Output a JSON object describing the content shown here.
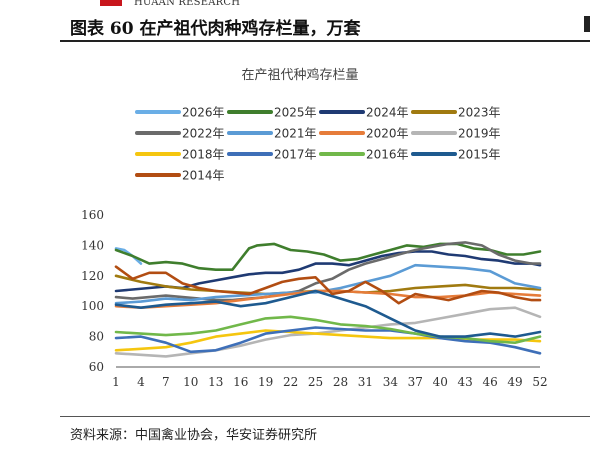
{
  "header": {
    "brand": "HUAAN RESEARCH",
    "figure_title": "图表 60 在产祖代肉种鸡存栏量，万套"
  },
  "footer": {
    "source": "资料来源：中国禽业协会，华安证券研究所"
  },
  "colors": {
    "brand_red": "#c8161d"
  },
  "chart_data": {
    "type": "line",
    "title": "在产祖代种鸡存栏量",
    "xlabel": "",
    "ylabel": "",
    "ylim": [
      60,
      160
    ],
    "yticks": [
      60,
      80,
      100,
      120,
      140,
      160
    ],
    "xlim": [
      1,
      52
    ],
    "xticks": [
      1,
      4,
      7,
      10,
      13,
      16,
      19,
      22,
      25,
      28,
      31,
      34,
      37,
      40,
      43,
      46,
      49,
      52
    ],
    "grid": false,
    "legend_position": "top",
    "series": [
      {
        "name": "2026年",
        "color": "#6aaee6",
        "x": [
          1,
          2,
          3,
          4
        ],
        "y": [
          138,
          137,
          133,
          128
        ]
      },
      {
        "name": "2025年",
        "color": "#3f7e2d",
        "x": [
          1,
          3,
          5,
          7,
          9,
          11,
          13,
          15,
          17,
          18,
          20,
          22,
          24,
          26,
          28,
          30,
          32,
          34,
          36,
          38,
          40,
          42,
          44,
          46,
          48,
          50,
          52
        ],
        "y": [
          137,
          133,
          128,
          129,
          128,
          125,
          124,
          124,
          138,
          140,
          141,
          137,
          136,
          134,
          130,
          131,
          134,
          137,
          140,
          139,
          141,
          141,
          138,
          137,
          134,
          134,
          136
        ]
      },
      {
        "name": "2024年",
        "color": "#1f3a73",
        "x": [
          1,
          3,
          5,
          7,
          9,
          11,
          13,
          15,
          17,
          19,
          21,
          23,
          25,
          27,
          29,
          31,
          33,
          35,
          37,
          39,
          41,
          43,
          45,
          47,
          49,
          51,
          52
        ],
        "y": [
          110,
          111,
          112,
          113,
          112,
          115,
          117,
          119,
          121,
          122,
          122,
          124,
          128,
          128,
          127,
          130,
          133,
          135,
          136,
          136,
          134,
          133,
          131,
          130,
          128,
          128,
          127
        ]
      },
      {
        "name": "2023年",
        "color": "#a07a10",
        "x": [
          1,
          4,
          7,
          10,
          13,
          16,
          19,
          22,
          25,
          28,
          31,
          34,
          37,
          40,
          43,
          46,
          49,
          52
        ],
        "y": [
          120,
          116,
          113,
          111,
          110,
          109,
          108,
          109,
          110,
          110,
          109,
          110,
          112,
          113,
          114,
          112,
          112,
          111
        ]
      },
      {
        "name": "2022年",
        "color": "#6b6b6b",
        "x": [
          1,
          3,
          5,
          7,
          9,
          11,
          13,
          15,
          17,
          19,
          21,
          23,
          25,
          27,
          29,
          31,
          33,
          35,
          37,
          39,
          41,
          43,
          45,
          47,
          49,
          51,
          52
        ],
        "y": [
          106,
          105,
          106,
          107,
          106,
          105,
          104,
          104,
          105,
          106,
          108,
          110,
          115,
          118,
          124,
          128,
          131,
          134,
          137,
          139,
          141,
          142,
          140,
          134,
          130,
          128,
          128
        ]
      },
      {
        "name": "2021年",
        "color": "#5b9bd5",
        "x": [
          1,
          4,
          7,
          10,
          13,
          16,
          19,
          22,
          25,
          28,
          31,
          34,
          37,
          40,
          43,
          46,
          49,
          52
        ],
        "y": [
          102,
          103,
          105,
          104,
          106,
          107,
          108,
          109,
          109,
          112,
          116,
          120,
          127,
          126,
          125,
          123,
          115,
          112
        ]
      },
      {
        "name": "2020年",
        "color": "#e67c3a",
        "x": [
          1,
          4,
          7,
          10,
          13,
          16,
          19,
          22,
          25,
          28,
          31,
          34,
          37,
          40,
          43,
          46,
          49,
          52
        ],
        "y": [
          100,
          99,
          100,
          101,
          102,
          104,
          106,
          108,
          110,
          110,
          109,
          108,
          106,
          106,
          107,
          109,
          108,
          107
        ]
      },
      {
        "name": "2019年",
        "color": "#b5b5b5",
        "x": [
          1,
          4,
          7,
          10,
          13,
          16,
          19,
          22,
          25,
          28,
          31,
          34,
          37,
          40,
          43,
          46,
          49,
          52
        ],
        "y": [
          69,
          68,
          67,
          69,
          71,
          74,
          78,
          81,
          82,
          84,
          86,
          88,
          89,
          92,
          95,
          98,
          99,
          93
        ]
      },
      {
        "name": "2018年",
        "color": "#f5c60f",
        "x": [
          1,
          4,
          7,
          10,
          13,
          16,
          19,
          22,
          25,
          28,
          31,
          34,
          37,
          40,
          43,
          46,
          49,
          52
        ],
        "y": [
          71,
          72,
          73,
          76,
          80,
          82,
          84,
          83,
          82,
          81,
          80,
          79,
          79,
          79,
          78,
          78,
          78,
          77
        ]
      },
      {
        "name": "2017年",
        "color": "#3e6fb8",
        "x": [
          1,
          4,
          7,
          10,
          13,
          16,
          19,
          22,
          25,
          28,
          31,
          34,
          37,
          40,
          43,
          46,
          49,
          52
        ],
        "y": [
          79,
          80,
          76,
          70,
          71,
          76,
          82,
          84,
          86,
          85,
          84,
          84,
          82,
          79,
          77,
          76,
          73,
          69
        ]
      },
      {
        "name": "2016年",
        "color": "#71b84a",
        "x": [
          1,
          4,
          7,
          10,
          13,
          16,
          19,
          22,
          25,
          28,
          31,
          34,
          37,
          40,
          43,
          46,
          49,
          52
        ],
        "y": [
          83,
          82,
          81,
          82,
          84,
          88,
          92,
          93,
          91,
          88,
          87,
          85,
          82,
          80,
          79,
          77,
          76,
          80
        ]
      },
      {
        "name": "2015年",
        "color": "#1e5a8f",
        "x": [
          1,
          4,
          7,
          10,
          13,
          16,
          19,
          22,
          25,
          28,
          31,
          34,
          37,
          40,
          43,
          46,
          49,
          52
        ],
        "y": [
          101,
          99,
          101,
          102,
          103,
          100,
          102,
          106,
          110,
          105,
          100,
          92,
          84,
          80,
          80,
          82,
          80,
          83
        ]
      },
      {
        "name": "2014年",
        "color": "#b24d12",
        "x": [
          1,
          3,
          5,
          7,
          9,
          11,
          13,
          15,
          17,
          19,
          21,
          23,
          25,
          27,
          29,
          31,
          33,
          35,
          37,
          39,
          41,
          43,
          45,
          47,
          49,
          51,
          52
        ],
        "y": [
          126,
          118,
          122,
          122,
          115,
          112,
          110,
          109,
          108,
          112,
          116,
          118,
          119,
          108,
          110,
          116,
          110,
          102,
          108,
          106,
          104,
          107,
          110,
          109,
          106,
          104,
          104
        ]
      }
    ]
  }
}
